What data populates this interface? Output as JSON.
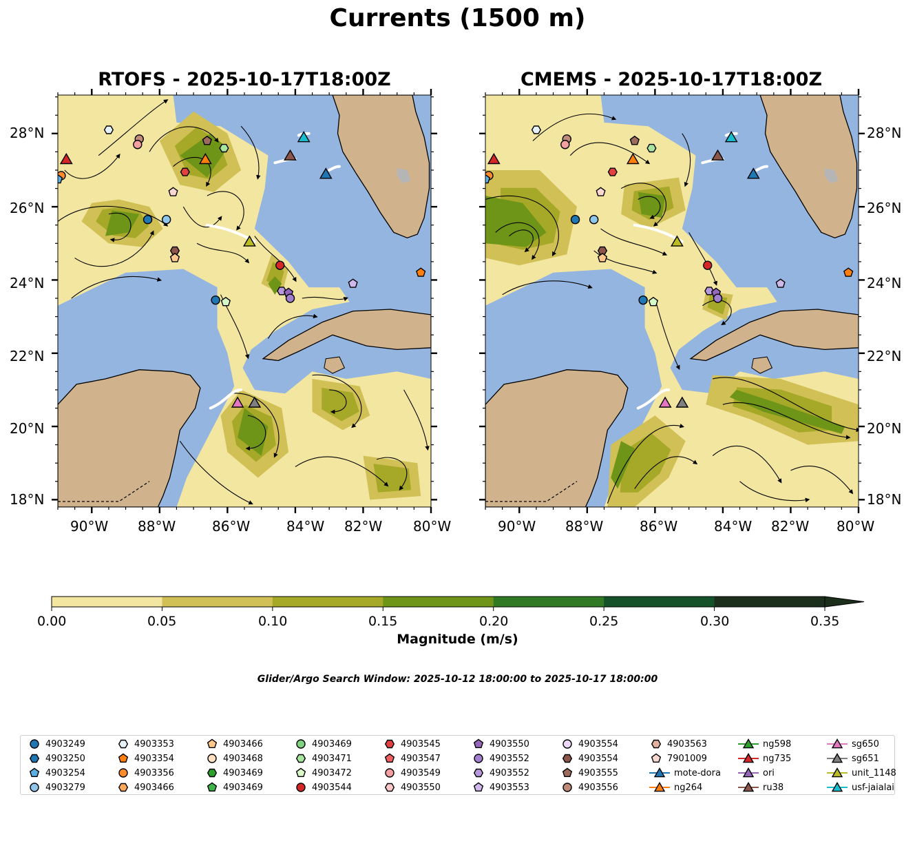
{
  "figure": {
    "title": "Currents (1500 m)",
    "search_window": "Glider/Argo Search Window: 2025-10-12 18:00:00 to 2025-10-17 18:00:00"
  },
  "panels": [
    {
      "title": "RTOFS - 2025-10-17T18:00Z",
      "lat_side": "left"
    },
    {
      "title": "CMEMS - 2025-10-17T18:00Z",
      "lat_side": "right"
    }
  ],
  "axes": {
    "lon_ticks": [
      "90°W",
      "88°W",
      "86°W",
      "84°W",
      "82°W",
      "80°W"
    ],
    "lat_ticks": [
      "28°N",
      "26°N",
      "24°N",
      "22°N",
      "20°N",
      "18°N"
    ]
  },
  "colorbar": {
    "label": "Magnitude (m/s)",
    "ticks": [
      "0.00",
      "0.05",
      "0.10",
      "0.15",
      "0.20",
      "0.25",
      "0.30",
      "0.35"
    ],
    "colors": [
      "#f2e6a0",
      "#d0c055",
      "#a6a828",
      "#6e9418",
      "#2f7a22",
      "#155229",
      "#1c2e1c"
    ]
  },
  "colors": {
    "ocean": "#94b5e0",
    "land": "#d0b38c",
    "lake": "#b5b5b5"
  },
  "legend": [
    {
      "label": "4903249",
      "marker": "circle",
      "color": "#1f77b4"
    },
    {
      "label": "4903250",
      "marker": "hexagon",
      "color": "#1f77b4"
    },
    {
      "label": "4903254",
      "marker": "pentagon",
      "color": "#5ab0e0"
    },
    {
      "label": "4903279",
      "marker": "circle",
      "color": "#8fc6ea"
    },
    {
      "label": "4903353",
      "marker": "hexagon",
      "color": "#e6f2fb"
    },
    {
      "label": "4903354",
      "marker": "pentagon",
      "color": "#ff7f0e"
    },
    {
      "label": "4903356",
      "marker": "circle",
      "color": "#ff8c2a"
    },
    {
      "label": "4903466",
      "marker": "hexagon",
      "color": "#ffaa5a"
    },
    {
      "label": "4903466",
      "marker": "pentagon",
      "color": "#ffc88a"
    },
    {
      "label": "4903468",
      "marker": "circle",
      "color": "#ffe0c0"
    },
    {
      "label": "4903469",
      "marker": "hexagon",
      "color": "#2ca02c"
    },
    {
      "label": "4903469",
      "marker": "pentagon",
      "color": "#3cb54a"
    },
    {
      "label": "4903469",
      "marker": "circle",
      "color": "#7fd37f"
    },
    {
      "label": "4903471",
      "marker": "hexagon",
      "color": "#a8e6a0"
    },
    {
      "label": "4903472",
      "marker": "pentagon",
      "color": "#d8f8c8"
    },
    {
      "label": "4903544",
      "marker": "circle",
      "color": "#d62728"
    },
    {
      "label": "4903545",
      "marker": "hexagon",
      "color": "#e04040"
    },
    {
      "label": "4903547",
      "marker": "pentagon",
      "color": "#f06060"
    },
    {
      "label": "4903549",
      "marker": "circle",
      "color": "#f4a0a0"
    },
    {
      "label": "4903550",
      "marker": "hexagon",
      "color": "#fcc8c8"
    },
    {
      "label": "4903550",
      "marker": "pentagon",
      "color": "#9467bd"
    },
    {
      "label": "4903552",
      "marker": "circle",
      "color": "#a37fcf"
    },
    {
      "label": "4903552",
      "marker": "hexagon",
      "color": "#b898dc"
    },
    {
      "label": "4903553",
      "marker": "pentagon",
      "color": "#cfb8ec"
    },
    {
      "label": "4903554",
      "marker": "circle",
      "color": "#ecd8f8"
    },
    {
      "label": "4903554",
      "marker": "hexagon",
      "color": "#8c564b"
    },
    {
      "label": "4903555",
      "marker": "pentagon",
      "color": "#9c6b5b"
    },
    {
      "label": "4903556",
      "marker": "circle",
      "color": "#c08b78"
    },
    {
      "label": "4903563",
      "marker": "hexagon",
      "color": "#e0b0a0"
    },
    {
      "label": "7901009",
      "marker": "pentagon",
      "color": "#f8d8d0"
    },
    {
      "label": "mote-dora",
      "marker": "triangle-line",
      "color": "#1f77b4"
    },
    {
      "label": "ng264",
      "marker": "triangle-line",
      "color": "#ff7f0e"
    },
    {
      "label": "ng598",
      "marker": "triangle-line",
      "color": "#2ca02c"
    },
    {
      "label": "ng735",
      "marker": "triangle-line",
      "color": "#d62728"
    },
    {
      "label": "ori",
      "marker": "triangle-line",
      "color": "#9467bd"
    },
    {
      "label": "ru38",
      "marker": "triangle-line",
      "color": "#8c564b"
    },
    {
      "label": "sg650",
      "marker": "triangle-line",
      "color": "#e377c2"
    },
    {
      "label": "sg651",
      "marker": "triangle-line",
      "color": "#7f7f7f"
    },
    {
      "label": "unit_1148",
      "marker": "triangle-line",
      "color": "#bcbd22"
    },
    {
      "label": "usf-jaialai",
      "marker": "triangle-line",
      "color": "#17becf"
    }
  ],
  "observations": [
    {
      "name": "ng735",
      "marker": "triangle",
      "color": "#d62728",
      "lon": -90.75,
      "lat": 27.3
    },
    {
      "name": "4903356",
      "marker": "circle",
      "color": "#ff8c2a",
      "lon": -90.9,
      "lat": 26.85
    },
    {
      "name": "4903254",
      "marker": "pentagon",
      "color": "#5ab0e0",
      "lon": -91.0,
      "lat": 26.75
    },
    {
      "name": "4903353",
      "marker": "hexagon",
      "color": "#e6f2fb",
      "lon": -89.5,
      "lat": 28.1
    },
    {
      "name": "4903556",
      "marker": "circle",
      "color": "#c08b78",
      "lon": -88.6,
      "lat": 27.85
    },
    {
      "name": "4903549",
      "marker": "circle",
      "color": "#f4a0a0",
      "lon": -88.65,
      "lat": 27.7
    },
    {
      "name": "4903555",
      "marker": "pentagon",
      "color": "#9c6b5b",
      "lon": -86.6,
      "lat": 27.8
    },
    {
      "name": "4903471",
      "marker": "hexagon",
      "color": "#a8e6a0",
      "lon": -86.1,
      "lat": 27.6
    },
    {
      "name": "ng264",
      "marker": "triangle",
      "color": "#ff7f0e",
      "lon": -86.65,
      "lat": 27.3
    },
    {
      "name": "4903545",
      "marker": "hexagon",
      "color": "#e04040",
      "lon": -87.25,
      "lat": 26.95
    },
    {
      "name": "7901009",
      "marker": "pentagon",
      "color": "#f8d8d0",
      "lon": -87.6,
      "lat": 26.4
    },
    {
      "name": "4903249",
      "marker": "circle",
      "color": "#1f77b4",
      "lon": -88.35,
      "lat": 25.65
    },
    {
      "name": "4903279",
      "marker": "circle",
      "color": "#8fc6ea",
      "lon": -87.8,
      "lat": 25.65
    },
    {
      "name": "4903554",
      "marker": "hexagon",
      "color": "#8c564b",
      "lon": -87.55,
      "lat": 24.8
    },
    {
      "name": "4903466",
      "marker": "pentagon",
      "color": "#ffc88a",
      "lon": -87.55,
      "lat": 24.6
    },
    {
      "name": "unit_1148",
      "marker": "triangle",
      "color": "#bcbd22",
      "lon": -85.35,
      "lat": 25.05
    },
    {
      "name": "4903544",
      "marker": "circle",
      "color": "#d62728",
      "lon": -84.45,
      "lat": 24.4
    },
    {
      "name": "4903552",
      "marker": "hexagon",
      "color": "#b898dc",
      "lon": -84.4,
      "lat": 23.7
    },
    {
      "name": "4903550",
      "marker": "pentagon",
      "color": "#9467bd",
      "lon": -84.2,
      "lat": 23.65
    },
    {
      "name": "4903552",
      "marker": "circle",
      "color": "#a37fcf",
      "lon": -84.15,
      "lat": 23.5
    },
    {
      "name": "4903553",
      "marker": "pentagon",
      "color": "#cfb8ec",
      "lon": -82.3,
      "lat": 23.9
    },
    {
      "name": "4903249",
      "marker": "circle",
      "color": "#1f77b4",
      "lon": -86.35,
      "lat": 23.45
    },
    {
      "name": "4903472",
      "marker": "pentagon",
      "color": "#d8f8c8",
      "lon": -86.05,
      "lat": 23.4
    },
    {
      "name": "4903354",
      "marker": "pentagon",
      "color": "#ff7f0e",
      "lon": -80.3,
      "lat": 24.2
    },
    {
      "name": "usf-jaialai",
      "marker": "triangle",
      "color": "#17becf",
      "lon": -83.75,
      "lat": 27.9
    },
    {
      "name": "ru38",
      "marker": "triangle",
      "color": "#8c564b",
      "lon": -84.15,
      "lat": 27.4
    },
    {
      "name": "mote-dora",
      "marker": "triangle",
      "color": "#1f77b4",
      "lon": -83.1,
      "lat": 26.9
    },
    {
      "name": "sg650",
      "marker": "triangle",
      "color": "#e377c2",
      "lon": -85.7,
      "lat": 20.65
    },
    {
      "name": "sg651",
      "marker": "triangle",
      "color": "#7f7f7f",
      "lon": -85.2,
      "lat": 20.65
    }
  ]
}
